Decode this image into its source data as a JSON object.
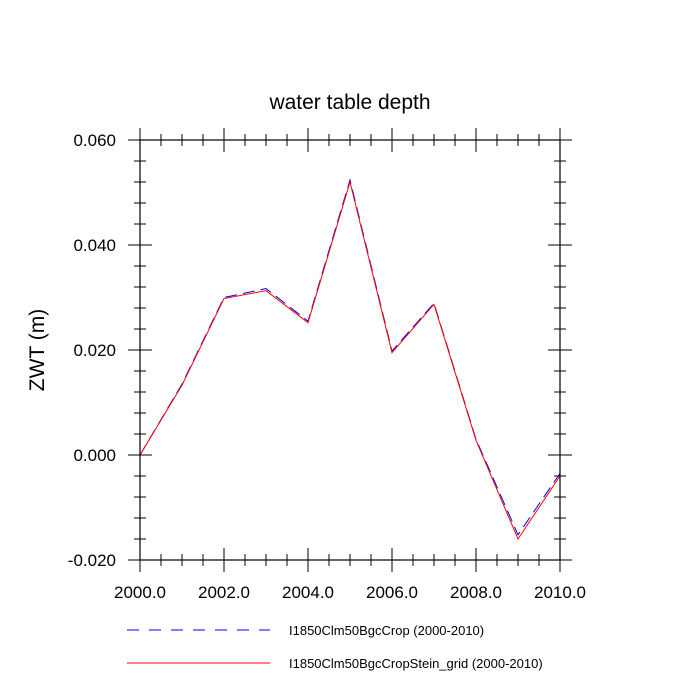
{
  "chart_data": {
    "type": "line",
    "title": "water table depth",
    "xlabel": "",
    "ylabel": "ZWT  (m)",
    "xlim": [
      2000,
      2010
    ],
    "ylim": [
      -0.02,
      0.06
    ],
    "xticks": [
      "2000.0",
      "2002.0",
      "2004.0",
      "2006.0",
      "2008.0",
      "2010.0"
    ],
    "yticks": [
      "-0.020",
      "0.000",
      "0.020",
      "0.040",
      "0.060"
    ],
    "x": [
      2000,
      2001,
      2002,
      2003,
      2004,
      2005,
      2006,
      2007,
      2008,
      2009,
      2010
    ],
    "series": [
      {
        "name": "I1850Clm50BgcCrop (2000-2010)",
        "color": "#0000ff",
        "dash": "dashed",
        "values": [
          0.0,
          0.0135,
          0.03,
          0.0317,
          0.0255,
          0.0524,
          0.0198,
          0.0289,
          0.003,
          -0.0152,
          -0.0035
        ]
      },
      {
        "name": "I1850Clm50BgcCropStein_grid (2000-2010)",
        "color": "#ff0000",
        "dash": "solid",
        "values": [
          0.0,
          0.0133,
          0.0298,
          0.0313,
          0.0252,
          0.052,
          0.0195,
          0.0287,
          0.0028,
          -0.016,
          -0.004
        ]
      }
    ],
    "grid": false,
    "legend_position": "bottom"
  }
}
